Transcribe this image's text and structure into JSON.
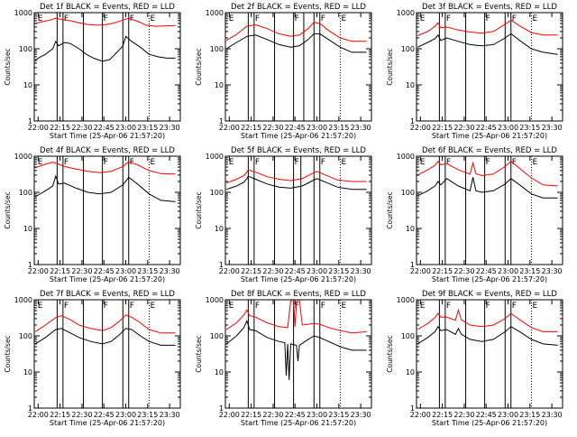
{
  "figure": {
    "xlabel": "Start Time (25-Apr-06 21:57:20)",
    "ylabel": "Counts/sec"
  },
  "chart_data": {
    "type": "line",
    "grid": "3x3 panels",
    "x_tick_labels": [
      "22:00",
      "22:15",
      "22:30",
      "22:45",
      "23:00",
      "23:15",
      "23:30"
    ],
    "x_range": [
      "21:57:20",
      "23:37:20"
    ],
    "y_scale": "log",
    "y_range": [
      1,
      1000
    ],
    "y_tick_labels": [
      "1",
      "10",
      "100",
      "1000"
    ],
    "event_labels": [
      "E",
      "F",
      "F",
      "F",
      "E"
    ],
    "colors": {
      "events": "#000000",
      "lld": "#ff0000"
    },
    "panels": [
      {
        "title": "Det 1f BLACK = Events, RED = LLD",
        "solid_lines": [
          "22:13",
          "22:17",
          "22:31",
          "22:44",
          "22:58",
          "23:02"
        ],
        "dotted_lines": [
          "23:16"
        ],
        "series": [
          {
            "role": "events",
            "x": [
              "21:58",
              "22:00",
              "22:05",
              "22:10",
              "22:12",
              "22:14",
              "22:18",
              "22:22",
              "22:28",
              "22:33",
              "22:38",
              "22:44",
              "22:49",
              "22:54",
              "22:58",
              "23:00",
              "23:04",
              "23:10",
              "23:16",
              "23:22",
              "23:28",
              "23:34"
            ],
            "y": [
              45,
              55,
              70,
              100,
              160,
              120,
              150,
              140,
              100,
              70,
              55,
              45,
              50,
              80,
              120,
              220,
              160,
              110,
              70,
              60,
              55,
              55
            ]
          },
          {
            "role": "lld",
            "x": [
              "21:58",
              "22:02",
              "22:08",
              "22:12",
              "22:16",
              "22:22",
              "22:28",
              "22:34",
              "22:40",
              "22:46",
              "22:52",
              "22:58",
              "23:02",
              "23:08",
              "23:14",
              "23:20",
              "23:26",
              "23:34"
            ],
            "y": [
              500,
              550,
              620,
              700,
              650,
              600,
              520,
              470,
              450,
              460,
              520,
              620,
              700,
              580,
              450,
              420,
              430,
              440
            ]
          }
        ]
      },
      {
        "title": "Det 2f BLACK = Events, RED = LLD",
        "solid_lines": [
          "22:13",
          "22:17",
          "22:31",
          "22:44",
          "22:51",
          "22:58",
          "23:02"
        ],
        "dotted_lines": [
          "23:16"
        ],
        "series": [
          {
            "role": "events",
            "x": [
              "21:58",
              "22:05",
              "22:12",
              "22:18",
              "22:26",
              "22:34",
              "22:42",
              "22:48",
              "22:54",
              "22:58",
              "23:02",
              "23:08",
              "23:16",
              "23:24",
              "23:34"
            ],
            "y": [
              100,
              150,
              220,
              240,
              180,
              130,
              110,
              120,
              180,
              260,
              260,
              180,
              110,
              80,
              80
            ]
          },
          {
            "role": "lld",
            "x": [
              "21:58",
              "22:05",
              "22:12",
              "22:18",
              "22:26",
              "22:34",
              "22:42",
              "22:48",
              "22:54",
              "22:58",
              "23:02",
              "23:08",
              "23:16",
              "23:24",
              "23:34"
            ],
            "y": [
              170,
              250,
              420,
              460,
              360,
              260,
              220,
              240,
              360,
              540,
              500,
              320,
              200,
              160,
              160
            ]
          }
        ]
      },
      {
        "title": "Det 3f BLACK = Events, RED = LLD",
        "solid_lines": [
          "22:13",
          "22:17",
          "22:31",
          "22:44",
          "22:58",
          "23:02"
        ],
        "dotted_lines": [
          "23:16"
        ],
        "series": [
          {
            "role": "events",
            "x": [
              "21:58",
              "22:05",
              "22:10",
              "22:12",
              "22:14",
              "22:18",
              "22:26",
              "22:34",
              "22:42",
              "22:50",
              "22:58",
              "23:02",
              "23:08",
              "23:16",
              "23:24",
              "23:34"
            ],
            "y": [
              110,
              150,
              190,
              240,
              170,
              200,
              160,
              130,
              120,
              130,
              200,
              260,
              170,
              100,
              80,
              70
            ]
          },
          {
            "role": "lld",
            "x": [
              "21:58",
              "22:05",
              "22:10",
              "22:12",
              "22:14",
              "22:18",
              "22:26",
              "22:34",
              "22:42",
              "22:50",
              "22:58",
              "23:02",
              "23:08",
              "23:16",
              "23:24",
              "23:34"
            ],
            "y": [
              230,
              300,
              420,
              520,
              380,
              400,
              330,
              290,
              270,
              300,
              480,
              620,
              430,
              280,
              240,
              240
            ]
          }
        ]
      },
      {
        "title": "Det 4f BLACK = Events, RED = LLD",
        "solid_lines": [
          "22:13",
          "22:17",
          "22:31",
          "22:44",
          "22:58",
          "23:02"
        ],
        "dotted_lines": [
          "23:16"
        ],
        "series": [
          {
            "role": "events",
            "x": [
              "21:58",
              "22:05",
              "22:10",
              "22:12",
              "22:14",
              "22:18",
              "22:26",
              "22:34",
              "22:42",
              "22:50",
              "22:58",
              "23:02",
              "23:08",
              "23:16",
              "23:24",
              "23:34"
            ],
            "y": [
              75,
              110,
              150,
              280,
              170,
              180,
              130,
              100,
              90,
              100,
              160,
              260,
              170,
              90,
              60,
              55
            ]
          },
          {
            "role": "lld",
            "x": [
              "21:58",
              "22:05",
              "22:10",
              "22:14",
              "22:18",
              "22:26",
              "22:34",
              "22:42",
              "22:50",
              "22:58",
              "23:02",
              "23:08",
              "23:16",
              "23:24",
              "23:34"
            ],
            "y": [
              480,
              600,
              680,
              600,
              520,
              440,
              380,
              350,
              380,
              520,
              700,
              580,
              400,
              330,
              320
            ]
          }
        ]
      },
      {
        "title": "Det 5f BLACK = Events, RED = LLD",
        "solid_lines": [
          "22:13",
          "22:17",
          "22:31",
          "22:44",
          "22:49",
          "22:58",
          "23:02"
        ],
        "dotted_lines": [
          "23:16"
        ],
        "series": [
          {
            "role": "events",
            "x": [
              "21:58",
              "22:05",
              "22:10",
              "22:12",
              "22:13",
              "22:18",
              "22:26",
              "22:34",
              "22:42",
              "22:50",
              "22:56",
              "23:00",
              "23:06",
              "23:14",
              "23:24",
              "23:34"
            ],
            "y": [
              120,
              150,
              190,
              240,
              280,
              230,
              170,
              140,
              130,
              150,
              200,
              240,
              190,
              140,
              120,
              120
            ]
          },
          {
            "role": "lld",
            "x": [
              "21:58",
              "22:05",
              "22:10",
              "22:12",
              "22:13",
              "22:18",
              "22:26",
              "22:34",
              "22:42",
              "22:50",
              "22:56",
              "23:00",
              "23:06",
              "23:14",
              "23:24",
              "23:34"
            ],
            "y": [
              180,
              230,
              290,
              360,
              420,
              360,
              270,
              230,
              210,
              240,
              320,
              380,
              300,
              220,
              200,
              200
            ]
          }
        ]
      },
      {
        "title": "Det 6f BLACK = Events, RED = LLD",
        "solid_lines": [
          "22:13",
          "22:17",
          "22:31",
          "22:44",
          "22:58",
          "23:02"
        ],
        "dotted_lines": [
          "23:16"
        ],
        "series": [
          {
            "role": "events",
            "x": [
              "21:58",
              "22:05",
              "22:10",
              "22:12",
              "22:14",
              "22:18",
              "22:26",
              "22:34",
              "22:36",
              "22:38",
              "22:42",
              "22:50",
              "22:58",
              "23:02",
              "23:08",
              "23:16",
              "23:24",
              "23:34"
            ],
            "y": [
              80,
              110,
              150,
              200,
              160,
              240,
              150,
              110,
              260,
              110,
              100,
              110,
              170,
              240,
              160,
              90,
              70,
              70
            ]
          },
          {
            "role": "lld",
            "x": [
              "21:58",
              "22:05",
              "22:10",
              "22:12",
              "22:14",
              "22:18",
              "22:26",
              "22:34",
              "22:36",
              "22:38",
              "22:42",
              "22:50",
              "22:58",
              "23:02",
              "23:08",
              "23:16",
              "23:24",
              "23:34"
            ],
            "y": [
              300,
              420,
              560,
              720,
              580,
              620,
              420,
              320,
              650,
              330,
              290,
              320,
              520,
              720,
              460,
              250,
              160,
              150
            ]
          }
        ]
      },
      {
        "title": "Det 7f BLACK = Events, RED = LLD",
        "solid_lines": [
          "22:13",
          "22:17",
          "22:31",
          "22:44",
          "22:58",
          "23:02"
        ],
        "dotted_lines": [
          "23:16"
        ],
        "series": [
          {
            "role": "events",
            "x": [
              "21:58",
              "22:05",
              "22:12",
              "22:16",
              "22:22",
              "22:28",
              "22:36",
              "22:44",
              "22:50",
              "22:56",
              "23:00",
              "23:04",
              "23:10",
              "23:16",
              "23:24",
              "23:34"
            ],
            "y": [
              60,
              90,
              150,
              160,
              120,
              90,
              70,
              60,
              70,
              110,
              160,
              150,
              100,
              70,
              55,
              55
            ]
          },
          {
            "role": "lld",
            "x": [
              "21:58",
              "22:05",
              "22:12",
              "22:16",
              "22:22",
              "22:28",
              "22:36",
              "22:44",
              "22:50",
              "22:56",
              "23:00",
              "23:04",
              "23:10",
              "23:16",
              "23:24",
              "23:34"
            ],
            "y": [
              130,
              200,
              320,
              360,
              280,
              200,
              160,
              140,
              170,
              260,
              380,
              330,
              230,
              150,
              120,
              120
            ]
          }
        ]
      },
      {
        "title": "Det 8f BLACK = Events, RED = LLD",
        "solid_lines": [
          "22:13",
          "22:17",
          "22:31",
          "22:44",
          "22:58",
          "23:02"
        ],
        "dotted_lines": [
          "23:16"
        ],
        "series": [
          {
            "role": "events",
            "x": [
              "21:58",
              "22:05",
              "22:10",
              "22:12",
              "22:14",
              "22:18",
              "22:26",
              "22:34",
              "22:38",
              "22:39",
              "22:40",
              "22:41",
              "22:42",
              "22:46",
              "22:47",
              "22:48",
              "22:54",
              "22:58",
              "23:02",
              "23:08",
              "23:16",
              "23:24",
              "23:34"
            ],
            "y": [
              60,
              100,
              170,
              260,
              150,
              140,
              90,
              70,
              65,
              8,
              60,
              6,
              60,
              55,
              20,
              55,
              80,
              100,
              90,
              70,
              50,
              40,
              40
            ]
          },
          {
            "role": "lld",
            "x": [
              "21:58",
              "22:05",
              "22:10",
              "22:12",
              "22:14",
              "22:18",
              "22:26",
              "22:34",
              "22:40",
              "22:42",
              "22:43",
              "22:44",
              "22:45",
              "22:46",
              "22:47",
              "22:48",
              "22:50",
              "22:58",
              "23:02",
              "23:08",
              "23:16",
              "23:24",
              "23:34"
            ],
            "y": [
              150,
              230,
              380,
              520,
              360,
              330,
              230,
              180,
              170,
              900,
              1000,
              1000,
              180,
              800,
              1000,
              1000,
              200,
              220,
              210,
              170,
              140,
              120,
              130
            ]
          }
        ]
      },
      {
        "title": "Det 9f BLACK = Events, RED = LLD",
        "solid_lines": [
          "22:13",
          "22:17",
          "22:31",
          "22:44",
          "22:58",
          "23:02"
        ],
        "dotted_lines": [
          "23:16"
        ],
        "series": [
          {
            "role": "events",
            "x": [
              "21:58",
              "22:05",
              "22:10",
              "22:12",
              "22:14",
              "22:18",
              "22:24",
              "22:26",
              "22:28",
              "22:34",
              "22:42",
              "22:50",
              "22:58",
              "23:02",
              "23:08",
              "23:16",
              "23:24",
              "23:34"
            ],
            "y": [
              60,
              90,
              130,
              180,
              140,
              150,
              110,
              160,
              110,
              80,
              70,
              80,
              130,
              180,
              130,
              80,
              60,
              55
            ]
          },
          {
            "role": "lld",
            "x": [
              "21:58",
              "22:05",
              "22:10",
              "22:12",
              "22:14",
              "22:18",
              "22:24",
              "22:26",
              "22:28",
              "22:34",
              "22:42",
              "22:50",
              "22:58",
              "23:02",
              "23:08",
              "23:16",
              "23:24",
              "23:34"
            ],
            "y": [
              150,
              220,
              320,
              420,
              330,
              330,
              270,
              520,
              280,
              200,
              180,
              200,
              300,
              420,
              280,
              170,
              130,
              130
            ]
          }
        ]
      }
    ]
  }
}
